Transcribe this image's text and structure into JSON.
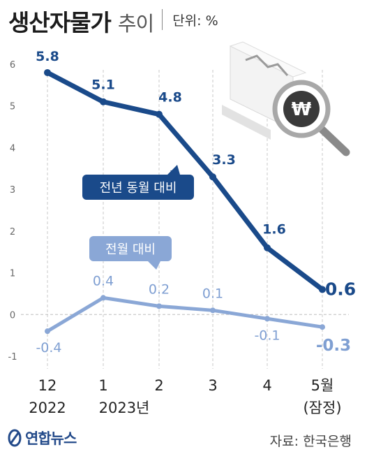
{
  "header": {
    "title": "생산자물가",
    "subtitle": "추이",
    "unit": "단위: %"
  },
  "chart_data": {
    "type": "line",
    "categories": [
      {
        "line1": "12",
        "line2": "2022"
      },
      {
        "line1": "1",
        "line2": "2023년"
      },
      {
        "line1": "2",
        "line2": ""
      },
      {
        "line1": "3",
        "line2": ""
      },
      {
        "line1": "4",
        "line2": ""
      },
      {
        "line1": "5월",
        "line2": "(잠정)"
      }
    ],
    "series": [
      {
        "name": "전년 동월 대비",
        "values": [
          5.8,
          5.1,
          4.8,
          3.3,
          1.6,
          0.6
        ],
        "labels": [
          "5.8",
          "5.1",
          "4.8",
          "3.3",
          "1.6",
          "0.6"
        ],
        "color": "#1a4a8a"
      },
      {
        "name": "전월 대비",
        "values": [
          -0.4,
          0.4,
          0.2,
          0.1,
          -0.1,
          -0.3
        ],
        "labels": [
          "-0.4",
          "0.4",
          "0.2",
          "0.1",
          "-0.1",
          "-0.3"
        ],
        "color": "#8aa7d6"
      }
    ],
    "yticks": [
      "6",
      "5",
      "4",
      "3",
      "2",
      "1",
      "0",
      "-1"
    ],
    "ylim": [
      -1,
      6
    ],
    "grid": "vertical dashed lines at each category"
  },
  "footer": {
    "logo_text": "연합뉴스",
    "source": "자료: 한국은행"
  },
  "icons": {
    "illustration": "won-magnifier-chart-icon"
  }
}
